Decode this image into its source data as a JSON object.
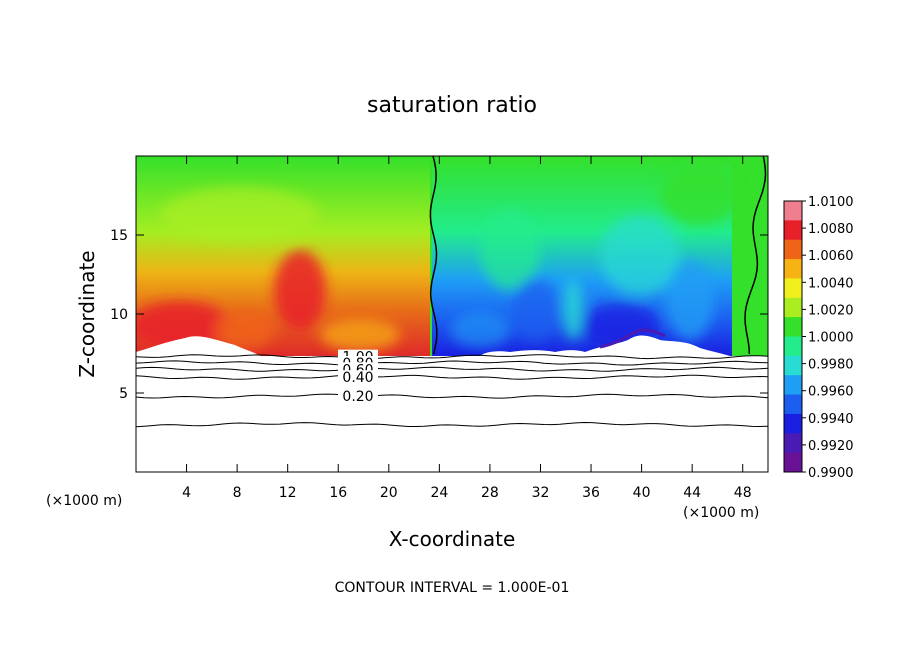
{
  "chart_data": {
    "type": "heatmap",
    "title": "saturation ratio",
    "xlabel": "X-coordinate",
    "ylabel": "Z-coordinate",
    "x_units_left": "(×1000 m)",
    "x_units_right": "(×1000 m)",
    "xlim": [
      0,
      50
    ],
    "ylim": [
      0,
      20
    ],
    "xticks": [
      4,
      8,
      12,
      16,
      20,
      24,
      28,
      32,
      36,
      40,
      44,
      48
    ],
    "yticks": [
      5,
      10,
      15
    ],
    "footer": "CONTOUR INTERVAL = 1.000E-01",
    "colorbar": {
      "levels": [
        "1.0100",
        "1.0080",
        "1.0060",
        "1.0040",
        "1.0020",
        "1.0000",
        "0.9980",
        "0.9960",
        "0.9940",
        "0.9920",
        "0.9900"
      ],
      "colors": [
        "#ef7f8f",
        "#e8202a",
        "#f06418",
        "#f7b214",
        "#f2f01c",
        "#aaee22",
        "#34e02a",
        "#22ec8c",
        "#28dcd4",
        "#1e9ef5",
        "#1c5ef0",
        "#1a1ee0",
        "#4a1ab4",
        "#6a1296"
      ]
    },
    "surface_contours": [
      {
        "label": "1.00",
        "z": 7.3
      },
      {
        "label": "0.80",
        "z": 6.9
      },
      {
        "label": "0.60",
        "z": 6.5
      },
      {
        "label": "0.40",
        "z": 6.0
      },
      {
        "label": "0.20",
        "z": 4.8
      },
      {
        "label": "",
        "z": 3.0
      }
    ],
    "unity_contour_x": [
      23.5,
      48.2
    ]
  }
}
